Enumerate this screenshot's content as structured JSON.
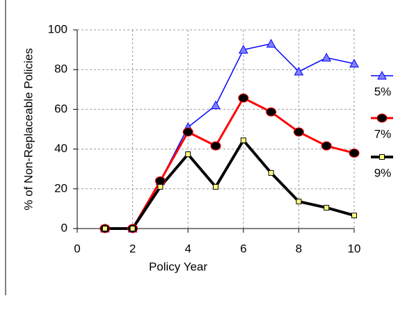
{
  "chart_data": {
    "type": "line",
    "xlabel": "Policy Year",
    "ylabel": "% of Non-Replaceable Policies",
    "x": [
      1,
      2,
      3,
      4,
      5,
      6,
      7,
      8,
      9,
      10
    ],
    "series": [
      {
        "name": "5%",
        "color": "#0000ff",
        "marker": "triangle",
        "marker_color": "#8080ff",
        "values": [
          0,
          0,
          24,
          51,
          62,
          90,
          93,
          79,
          86,
          83
        ]
      },
      {
        "name": "7%",
        "color": "#ff0000",
        "marker": "circle",
        "marker_color": "#000000",
        "values": [
          0,
          0,
          24,
          48.6,
          41.6,
          65.7,
          58.7,
          48.6,
          41.6,
          38
        ]
      },
      {
        "name": "9%",
        "color": "#000000",
        "marker": "square",
        "marker_color": "#ffff80",
        "values": [
          0,
          0,
          21,
          37.4,
          21,
          44.4,
          28,
          13.6,
          10.5,
          6.6
        ]
      }
    ],
    "xlim": [
      0,
      10
    ],
    "xticks": [
      0,
      2,
      4,
      6,
      8,
      10
    ],
    "ylim": [
      0,
      100
    ],
    "yticks": [
      0,
      20,
      40,
      60,
      80,
      100
    ],
    "grid": true,
    "legend": "right"
  }
}
